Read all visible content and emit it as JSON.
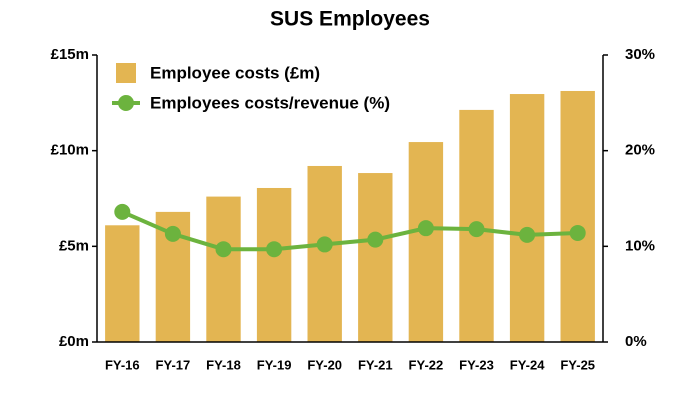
{
  "chart_data": {
    "type": "bar-line",
    "title": "SUS Employees",
    "categories": [
      "FY-16",
      "FY-17",
      "FY-18",
      "FY-19",
      "FY-20",
      "FY-21",
      "FY-22",
      "FY-23",
      "FY-24",
      "FY-25"
    ],
    "series": [
      {
        "name": "Employee costs (£m)",
        "type": "bar",
        "color": "#e3b552",
        "values": [
          6.1,
          6.8,
          7.6,
          8.05,
          9.2,
          8.83,
          10.45,
          12.13,
          12.96,
          13.12
        ]
      },
      {
        "name": "Employees costs/revenue (%)",
        "type": "line",
        "axis": "y2",
        "color": "#6cb33e",
        "values": [
          13.6,
          11.3,
          9.7,
          9.7,
          10.2,
          10.7,
          11.9,
          11.8,
          11.2,
          11.4
        ]
      }
    ],
    "ylim": [
      0,
      15
    ],
    "yticks": [
      {
        "value": 0,
        "label": "£0m"
      },
      {
        "value": 5,
        "label": "£5m"
      },
      {
        "value": 10,
        "label": "£10m"
      },
      {
        "value": 15,
        "label": "£15m"
      }
    ],
    "y2lim": [
      0,
      30
    ],
    "y2ticks": [
      {
        "value": 0,
        "label": "0%"
      },
      {
        "value": 10,
        "label": "10%"
      },
      {
        "value": 20,
        "label": "20%"
      },
      {
        "value": 30,
        "label": "30%"
      }
    ],
    "legend": "upper-left"
  }
}
